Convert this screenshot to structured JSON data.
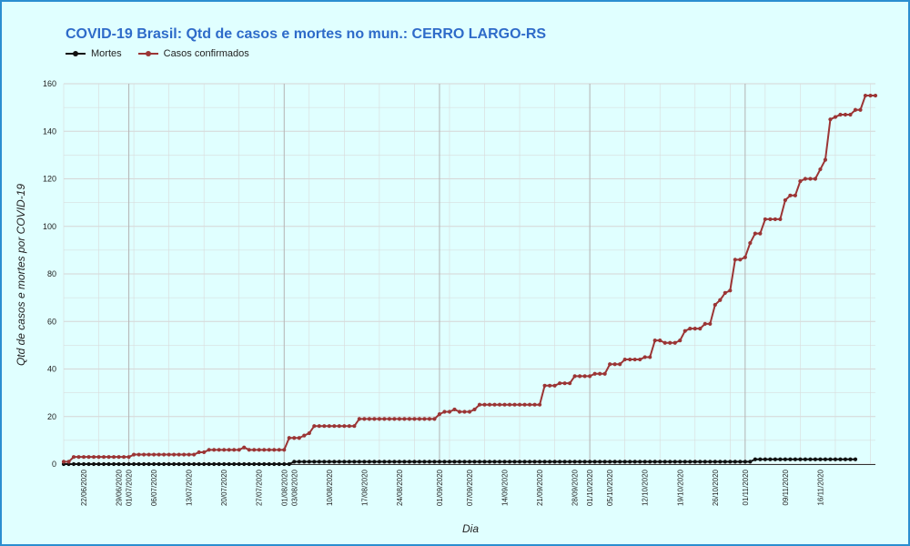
{
  "colors": {
    "background": "#e0ffff",
    "border": "#2b8ed0",
    "title": "#2e6bc9",
    "grid": "#cfcfcf",
    "mortes": "#111111",
    "casos": "#9b3535"
  },
  "chart_data": {
    "type": "line",
    "title": "COVID-19 Brasil: Qtd de casos e mortes no mun.: CERRO LARGO-RS",
    "xlabel": "Dia",
    "ylabel": "Qtd de casos e mortes por COVID-19",
    "ylim": [
      0,
      160
    ],
    "yticks": [
      0,
      20,
      40,
      60,
      80,
      100,
      120,
      140,
      160
    ],
    "x_start": "2020-06-18",
    "xticks": [
      "22/06/2020",
      "29/06/2020",
      "01/07/2020",
      "06/07/2020",
      "13/07/2020",
      "20/07/2020",
      "27/07/2020",
      "01/08/2020",
      "03/08/2020",
      "10/08/2020",
      "17/08/2020",
      "24/08/2020",
      "01/09/2020",
      "07/09/2020",
      "14/09/2020",
      "21/09/2020",
      "28/09/2020",
      "01/10/2020",
      "05/10/2020",
      "12/10/2020",
      "19/10/2020",
      "26/10/2020",
      "01/11/2020",
      "09/11/2020",
      "16/11/2020"
    ],
    "month_starts": [
      "01/07/2020",
      "01/08/2020",
      "01/09/2020",
      "01/10/2020",
      "01/11/2020"
    ],
    "legend": "top-left",
    "grid": true,
    "series": [
      {
        "name": "Mortes",
        "color": "#111111",
        "values": [
          0,
          0,
          0,
          0,
          0,
          0,
          0,
          0,
          0,
          0,
          0,
          0,
          0,
          0,
          0,
          0,
          0,
          0,
          0,
          0,
          0,
          0,
          0,
          0,
          0,
          0,
          0,
          0,
          0,
          0,
          0,
          0,
          0,
          0,
          0,
          0,
          0,
          0,
          0,
          0,
          0,
          0,
          0,
          0,
          0,
          0,
          1,
          1,
          1,
          1,
          1,
          1,
          1,
          1,
          1,
          1,
          1,
          1,
          1,
          1,
          1,
          1,
          1,
          1,
          1,
          1,
          1,
          1,
          1,
          1,
          1,
          1,
          1,
          1,
          1,
          1,
          1,
          1,
          1,
          1,
          1,
          1,
          1,
          1,
          1,
          1,
          1,
          1,
          1,
          1,
          1,
          1,
          1,
          1,
          1,
          1,
          1,
          1,
          1,
          1,
          1,
          1,
          1,
          1,
          1,
          1,
          1,
          1,
          1,
          1,
          1,
          1,
          1,
          1,
          1,
          1,
          1,
          1,
          1,
          1,
          1,
          1,
          1,
          1,
          1,
          1,
          1,
          1,
          1,
          1,
          1,
          1,
          1,
          1,
          1,
          1,
          1,
          1,
          2,
          2,
          2,
          2,
          2,
          2,
          2,
          2,
          2,
          2,
          2,
          2,
          2,
          2,
          2,
          2,
          2,
          2,
          2,
          2,
          2
        ]
      },
      {
        "name": "Casos confirmados",
        "color": "#9b3535",
        "values": [
          1,
          1,
          3,
          3,
          3,
          3,
          3,
          3,
          3,
          3,
          3,
          3,
          3,
          3,
          4,
          4,
          4,
          4,
          4,
          4,
          4,
          4,
          4,
          4,
          4,
          4,
          4,
          5,
          5,
          6,
          6,
          6,
          6,
          6,
          6,
          6,
          7,
          6,
          6,
          6,
          6,
          6,
          6,
          6,
          6,
          11,
          11,
          11,
          12,
          13,
          16,
          16,
          16,
          16,
          16,
          16,
          16,
          16,
          16,
          19,
          19,
          19,
          19,
          19,
          19,
          19,
          19,
          19,
          19,
          19,
          19,
          19,
          19,
          19,
          19,
          21,
          22,
          22,
          23,
          22,
          22,
          22,
          23,
          25,
          25,
          25,
          25,
          25,
          25,
          25,
          25,
          25,
          25,
          25,
          25,
          25,
          33,
          33,
          33,
          34,
          34,
          34,
          37,
          37,
          37,
          37,
          38,
          38,
          38,
          42,
          42,
          42,
          44,
          44,
          44,
          44,
          45,
          45,
          52,
          52,
          51,
          51,
          51,
          52,
          56,
          57,
          57,
          57,
          59,
          59,
          67,
          69,
          72,
          73,
          86,
          86,
          87,
          93,
          97,
          97,
          103,
          103,
          103,
          103,
          111,
          113,
          113,
          119,
          120,
          120,
          120,
          124,
          128,
          145,
          146,
          147,
          147,
          147,
          149,
          149,
          155,
          155,
          155
        ]
      }
    ]
  }
}
